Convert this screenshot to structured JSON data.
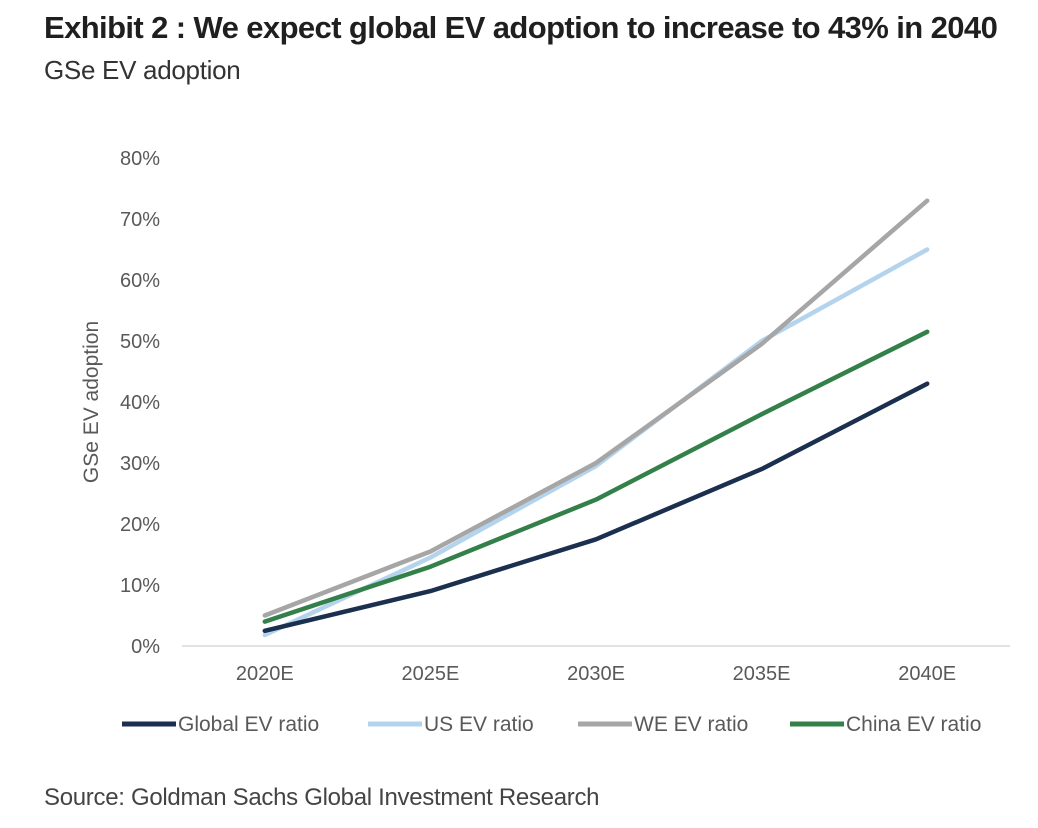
{
  "header": {
    "title": "Exhibit 2 : We expect global EV adoption to increase to 43% in 2040",
    "subtitle": "GSe EV adoption"
  },
  "footer": {
    "source": "Source: Goldman Sachs Global Investment Research"
  },
  "chart_data": {
    "type": "line",
    "title": "",
    "xlabel": "",
    "ylabel": "GSe EV adoption",
    "categories": [
      "2020E",
      "2025E",
      "2030E",
      "2035E",
      "2040E"
    ],
    "y_ticks": [
      "0%",
      "10%",
      "20%",
      "30%",
      "40%",
      "50%",
      "60%",
      "70%",
      "80%"
    ],
    "ylim": [
      0,
      80
    ],
    "grid": false,
    "legend_position": "bottom",
    "series": [
      {
        "name": "Global EV ratio",
        "color": "#1b2f4f",
        "values": [
          2.5,
          9,
          17.5,
          29,
          43
        ]
      },
      {
        "name": "US EV ratio",
        "color": "#b4d3ec",
        "values": [
          1.8,
          14.5,
          29.5,
          50,
          65
        ]
      },
      {
        "name": "WE EV ratio",
        "color": "#a6a6a6",
        "values": [
          5,
          15.5,
          30,
          49.5,
          73
        ]
      },
      {
        "name": "China EV ratio",
        "color": "#34804a",
        "values": [
          4,
          13,
          24,
          38,
          51.5
        ]
      }
    ]
  }
}
